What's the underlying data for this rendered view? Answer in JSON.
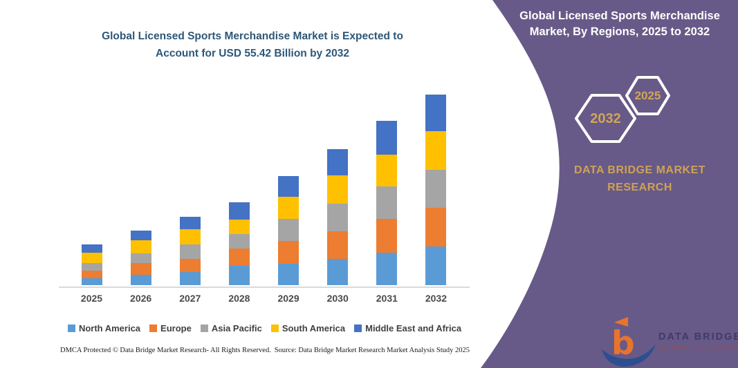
{
  "left_panel": {
    "title_line1": "Global Licensed Sports Merchandise Market is Expected to",
    "title_line2": "Account for USD 55.42 Billion by 2032",
    "footer_left": "DMCA Protected © Data Bridge Market Research-  All Rights Reserved.",
    "footer_right": "Source: Data Bridge Market Research  Market Analysis Study 2025"
  },
  "right_panel": {
    "title_line1": "Global Licensed Sports Merchandise",
    "title_line2": "Market, By Regions, 2025 to 2032",
    "hexagon_back_label": "2032",
    "hexagon_front_label": "2025",
    "brand_line1": "DATA BRIDGE MARKET",
    "brand_line2": "RESEARCH",
    "logo_text_primary": "DATA BRIDGE",
    "logo_text_secondary": "MARKET RESEARCH"
  },
  "colors": {
    "panel_purple": "#675a88",
    "accent_gold": "#cfa254",
    "chart_title_blue": "#2d5778",
    "axis_gray": "#d9d9d9",
    "logo_orange": "#e8742c",
    "logo_blue": "#2d4f8f"
  },
  "chart_data": {
    "type": "bar",
    "stacked": true,
    "title": "Global Licensed Sports Merchandise Market is Expected to Account for USD 55.42 Billion by 2032",
    "xlabel": "",
    "ylabel": "",
    "unit": "USD Billion",
    "ylim": [
      0,
      60
    ],
    "grid": false,
    "y_axis_visible": false,
    "legend_position": "bottom",
    "categories": [
      "2025",
      "2026",
      "2027",
      "2028",
      "2029",
      "2030",
      "2031",
      "2032"
    ],
    "series": [
      {
        "name": "North America",
        "color": "#5B9BD5",
        "values": [
          2.1,
          3.0,
          3.8,
          5.7,
          6.2,
          7.7,
          9.4,
          11.25
        ]
      },
      {
        "name": "Europe",
        "color": "#ED7D31",
        "values": [
          2.1,
          3.5,
          3.9,
          5.0,
          6.6,
          8.0,
          9.9,
          11.18
        ]
      },
      {
        "name": "Asia Pacific",
        "color": "#A5A5A5",
        "values": [
          2.3,
          2.7,
          4.1,
          4.2,
          6.4,
          8.0,
          9.4,
          11.04
        ]
      },
      {
        "name": "South America",
        "color": "#FFC000",
        "values": [
          2.9,
          3.8,
          4.4,
          4.2,
          6.6,
          8.2,
          9.3,
          11.38
        ]
      },
      {
        "name": "Middle East and Africa",
        "color": "#4472C4",
        "values": [
          2.5,
          2.9,
          3.7,
          5.0,
          6.0,
          7.7,
          9.7,
          10.57
        ]
      }
    ],
    "totals": [
      11.9,
      15.9,
      19.9,
      24.1,
      31.8,
      39.6,
      47.7,
      55.42
    ]
  }
}
